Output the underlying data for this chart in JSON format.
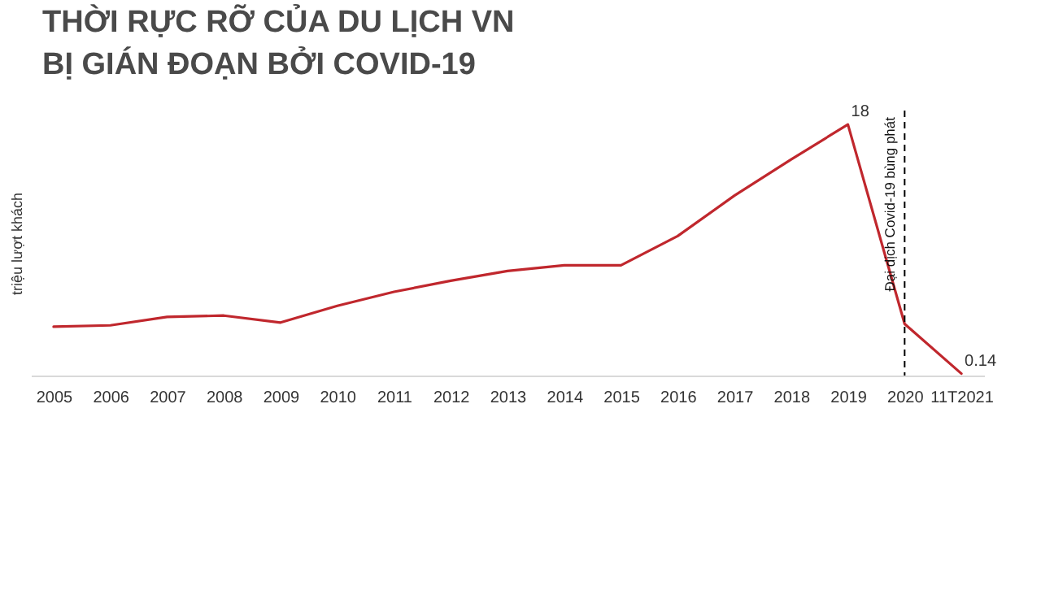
{
  "chart_data": {
    "type": "line",
    "title": "THỜI RỰC RỠ CỦA DU LỊCH VN\nBỊ GIÁN ĐOẠN BỞI COVID-19",
    "ylabel": "triệu lượt khách",
    "categories": [
      "2005",
      "2006",
      "2007",
      "2008",
      "2009",
      "2010",
      "2011",
      "2012",
      "2013",
      "2014",
      "2015",
      "2016",
      "2017",
      "2018",
      "2019",
      "2020",
      "11T2021"
    ],
    "series": [
      {
        "color": "#c0272d",
        "values": [
          3.5,
          3.6,
          4.2,
          4.3,
          3.8,
          5.0,
          6.0,
          6.8,
          7.5,
          7.9,
          7.9,
          10.0,
          12.9,
          15.5,
          18,
          3.7,
          0.14
        ],
        "value_labels": [
          null,
          null,
          null,
          null,
          null,
          null,
          null,
          null,
          null,
          null,
          null,
          null,
          null,
          null,
          "18",
          null,
          "0.14"
        ]
      }
    ],
    "ylim": [
      0,
      19
    ],
    "tick_labels": "x",
    "grid": false,
    "marker": "none",
    "line_style": "solid",
    "ref_lines": [
      {
        "axis": "x",
        "value": "2020",
        "label": "Đại dịch Covid-19 bùng phát",
        "color": "#000000",
        "line_style": "dashed"
      }
    ]
  }
}
